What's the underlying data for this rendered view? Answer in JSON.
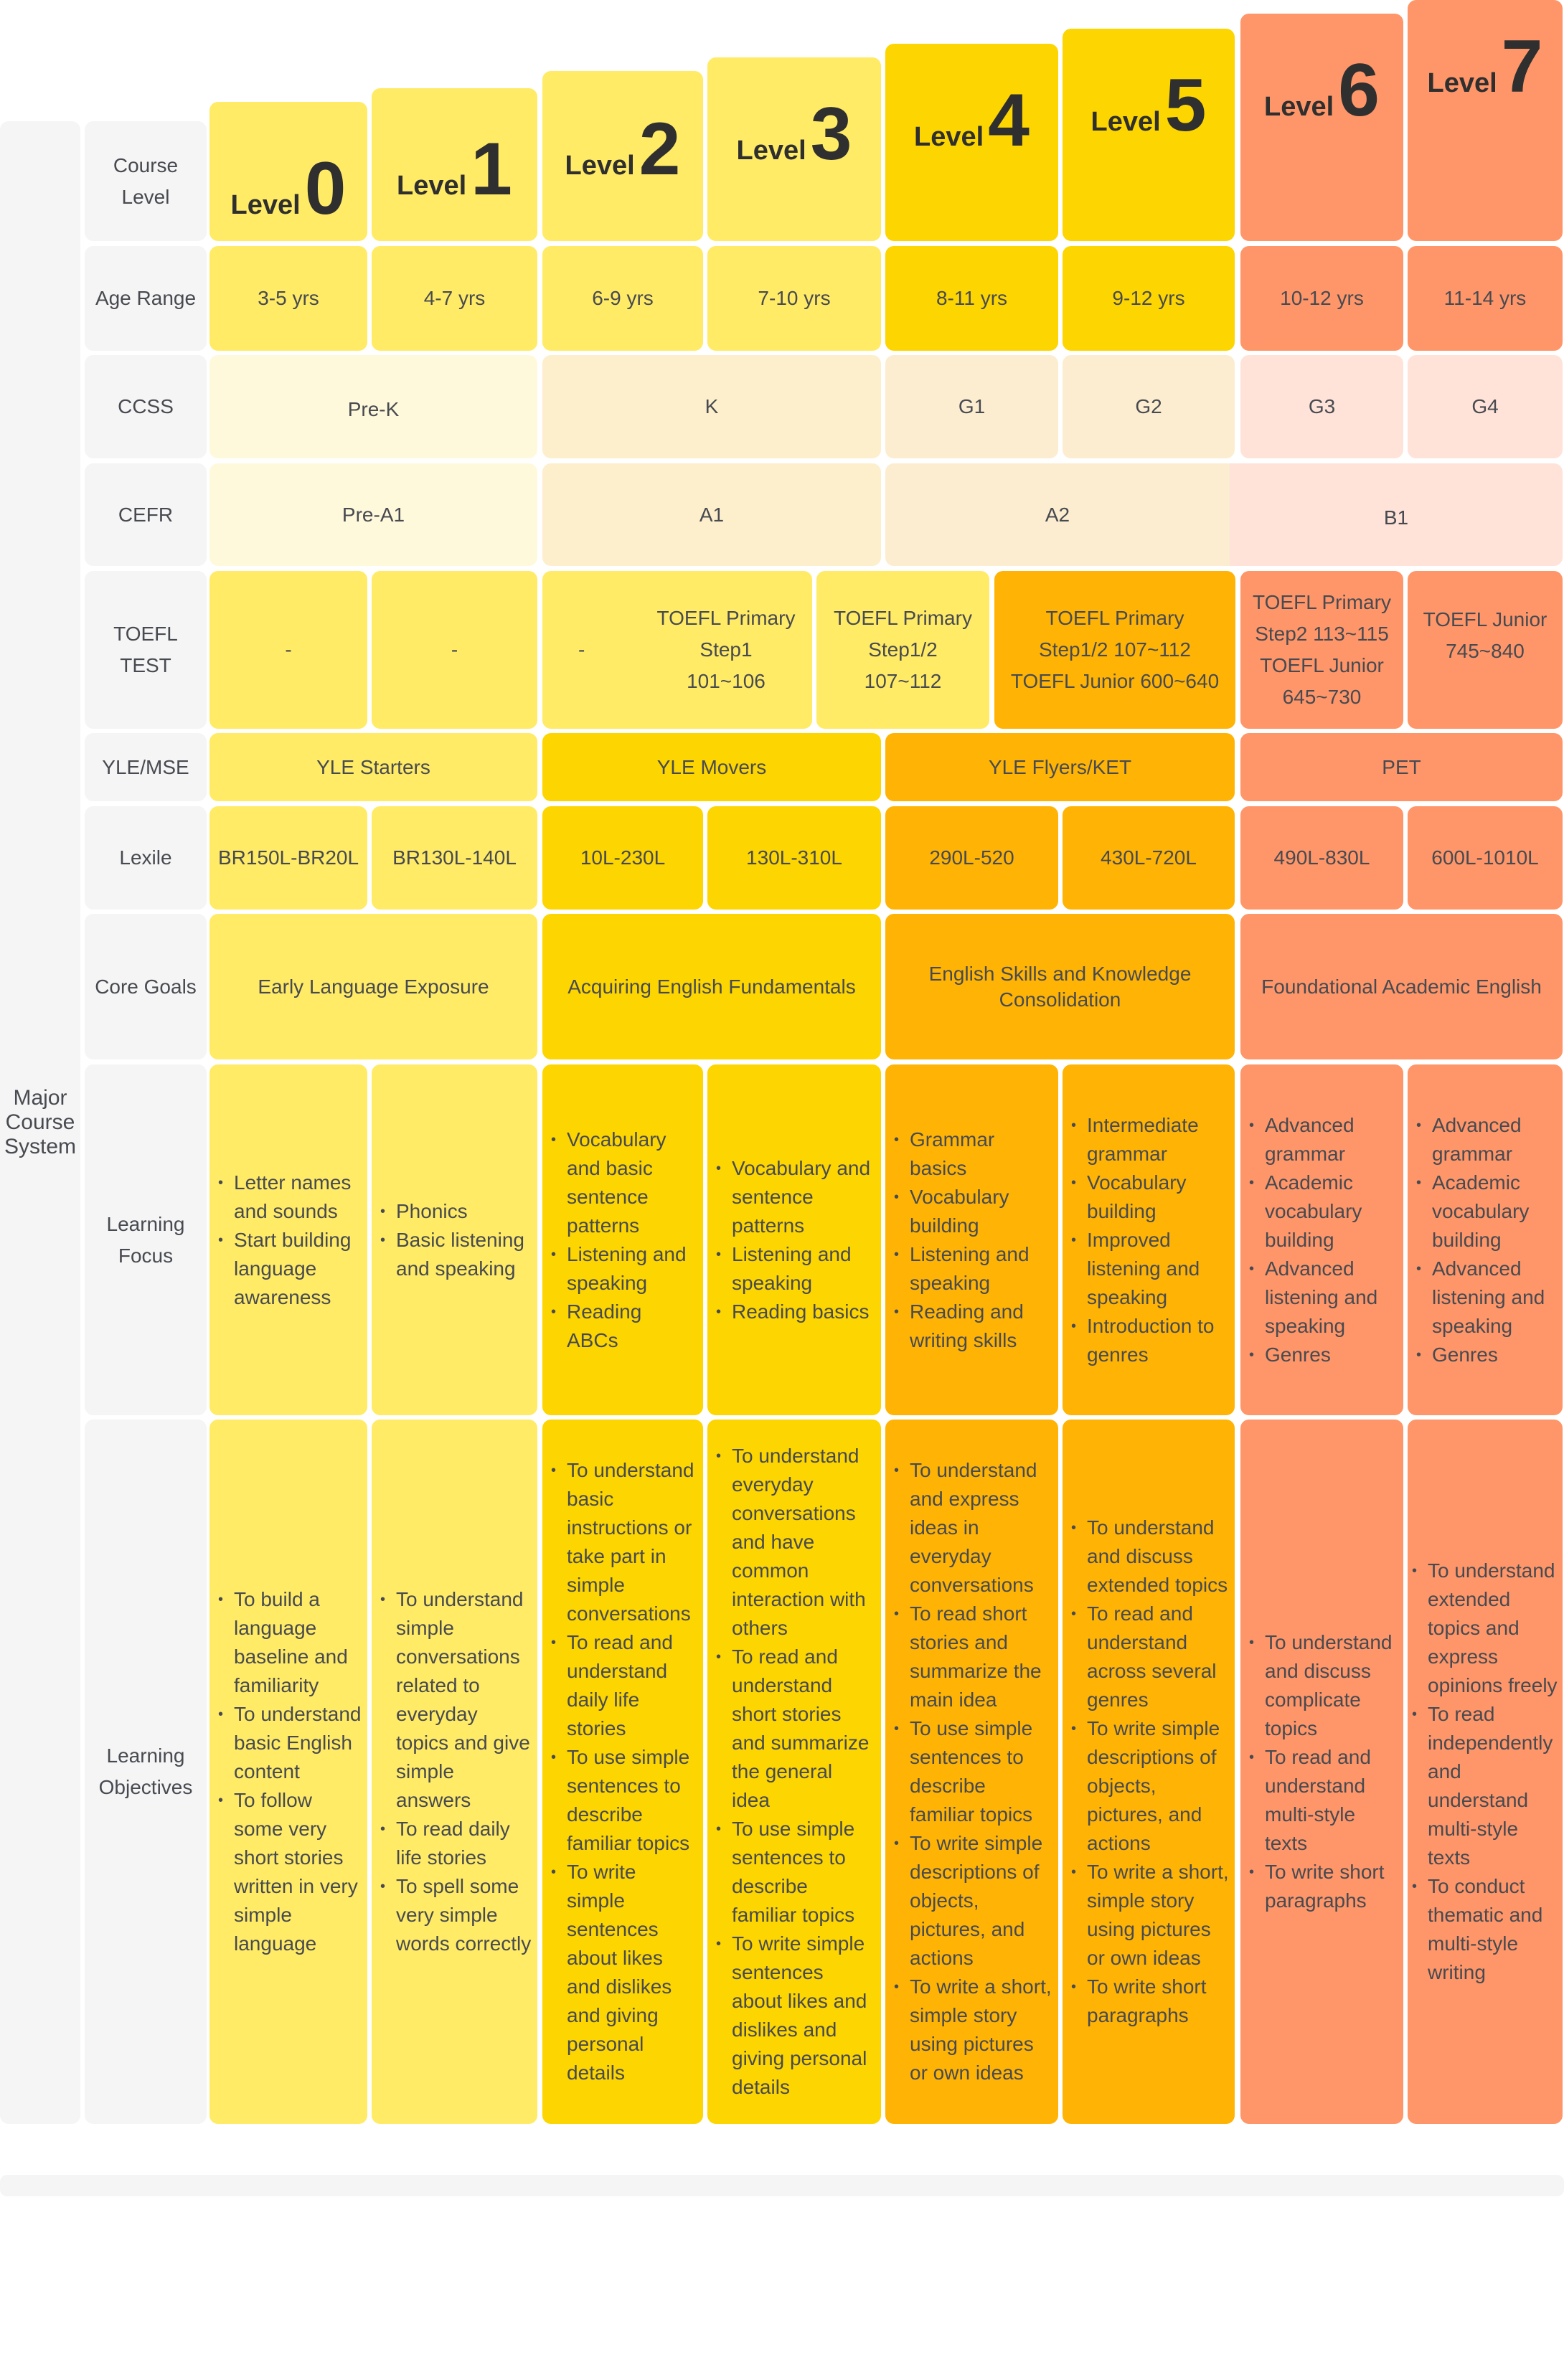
{
  "labels": {
    "major": "Major\nCourse\nSystem",
    "course_level": "Course\nLevel",
    "age": "Age Range",
    "ccss": "CCSS",
    "cefr": "CEFR",
    "toefl": "TOEFL TEST",
    "yle": "YLE/MSE",
    "lexile": "Lexile",
    "core": "Core Goals",
    "focus": "Learning\nFocus",
    "objectives": "Learning\nObjectives"
  },
  "levels": [
    {
      "word": "Level",
      "num": "0"
    },
    {
      "word": "Level",
      "num": "1"
    },
    {
      "word": "Level",
      "num": "2"
    },
    {
      "word": "Level",
      "num": "3"
    },
    {
      "word": "Level",
      "num": "4"
    },
    {
      "word": "Level",
      "num": "5"
    },
    {
      "word": "Level",
      "num": "6"
    },
    {
      "word": "Level",
      "num": "7"
    }
  ],
  "age": [
    "3-5 yrs",
    "4-7 yrs",
    "6-9 yrs",
    "7-10 yrs",
    "8-11 yrs",
    "9-12 yrs",
    "10-12 yrs",
    "11-14 yrs"
  ],
  "ccss": [
    "Pre-K",
    "K",
    "G1",
    "G2",
    "G3",
    "G4"
  ],
  "cefr": [
    "Pre-A1",
    "A1",
    "A2",
    "B1"
  ],
  "toefl": {
    "c0": "-",
    "c1": "-",
    "c2_dash": "-",
    "c2": "TOEFL Primary\nStep1\n101~106",
    "c3": "TOEFL Primary\nStep1/2\n107~112",
    "c45": "TOEFL Primary\nStep1/2 107~112\nTOEFL Junior 600~640",
    "c6": "TOEFL Primary\nStep2 113~115\nTOEFL Junior\n645~730",
    "c7": "TOEFL Junior\n745~840"
  },
  "yle": [
    "YLE Starters",
    "YLE Movers",
    "YLE Flyers/KET",
    "PET"
  ],
  "lexile": [
    "BR150L-BR20L",
    "BR130L-140L",
    "10L-230L",
    "130L-310L",
    "290L-520",
    "430L-720L",
    "490L-830L",
    "600L-1010L"
  ],
  "core": [
    "Early Language Exposure",
    "Acquiring English Fundamentals",
    "English Skills and Knowledge\nConsolidation",
    "Foundational Academic English"
  ],
  "focus": [
    [
      "Letter names and sounds",
      "Start building language awareness"
    ],
    [
      "Phonics",
      "Basic listening and speaking"
    ],
    [
      "Vocabulary and basic sentence patterns",
      "Listening and speaking",
      "Reading ABCs"
    ],
    [
      "Vocabulary and sentence patterns",
      "Listening and speaking",
      "Reading basics"
    ],
    [
      "Grammar basics",
      "Vocabulary building",
      "Listening and speaking",
      "Reading and writing skills"
    ],
    [
      "Intermediate grammar",
      "Vocabulary building",
      "Improved listening and speaking",
      "Introduction to genres"
    ],
    [
      "Advanced grammar",
      "Academic vocabulary building",
      "Advanced listening and speaking",
      "Genres"
    ],
    [
      "Advanced grammar",
      "Academic vocabulary building",
      "Advanced listening and speaking",
      "Genres"
    ]
  ],
  "objectives": [
    [
      "To build a language baseline and familiarity",
      "To understand basic English content",
      "To follow some very short stories written in very simple language"
    ],
    [
      "To understand simple conversations related to everyday topics and give simple answers",
      "To read daily life stories",
      "To spell some very simple words correctly"
    ],
    [
      "To understand basic instructions or take part in simple conversations",
      "To read and understand daily life stories",
      "To use simple sentences to describe familiar topics",
      "To write simple sentences about likes and dislikes and giving personal details"
    ],
    [
      "To understand everyday conversations and have common interaction with others",
      "To read and understand short stories and summarize the general idea",
      "To use simple sentences to describe familiar topics",
      "To write simple sentences about likes and dislikes and giving personal details"
    ],
    [
      "To understand and express ideas in everyday conversations",
      "To read short stories and summarize the main idea",
      "To use simple sentences to describe familiar topics",
      "To write simple descriptions of objects, pictures, and actions",
      "To write a short, simple story using pictures or own ideas"
    ],
    [
      "To understand and discuss extended topics",
      "To read and understand across several genres",
      "To write simple descriptions of objects, pictures, and actions",
      "To write a short, simple story using pictures or own ideas",
      "To write short paragraphs"
    ],
    [
      "To understand and discuss complicate topics",
      "To read and understand multi-style texts",
      "To write short paragraphs"
    ],
    [
      "To understand extended topics and express opinions freely",
      "To read independently and understand multi-style texts",
      "To conduct thematic and multi-style writing"
    ]
  ],
  "colors": {
    "label_bg": "#f5f5f5",
    "light_yellow": "#FFEB66",
    "gold": "#FDD500",
    "amber": "#FFB405",
    "salmon": "#FF9669",
    "text": "#474a50"
  }
}
